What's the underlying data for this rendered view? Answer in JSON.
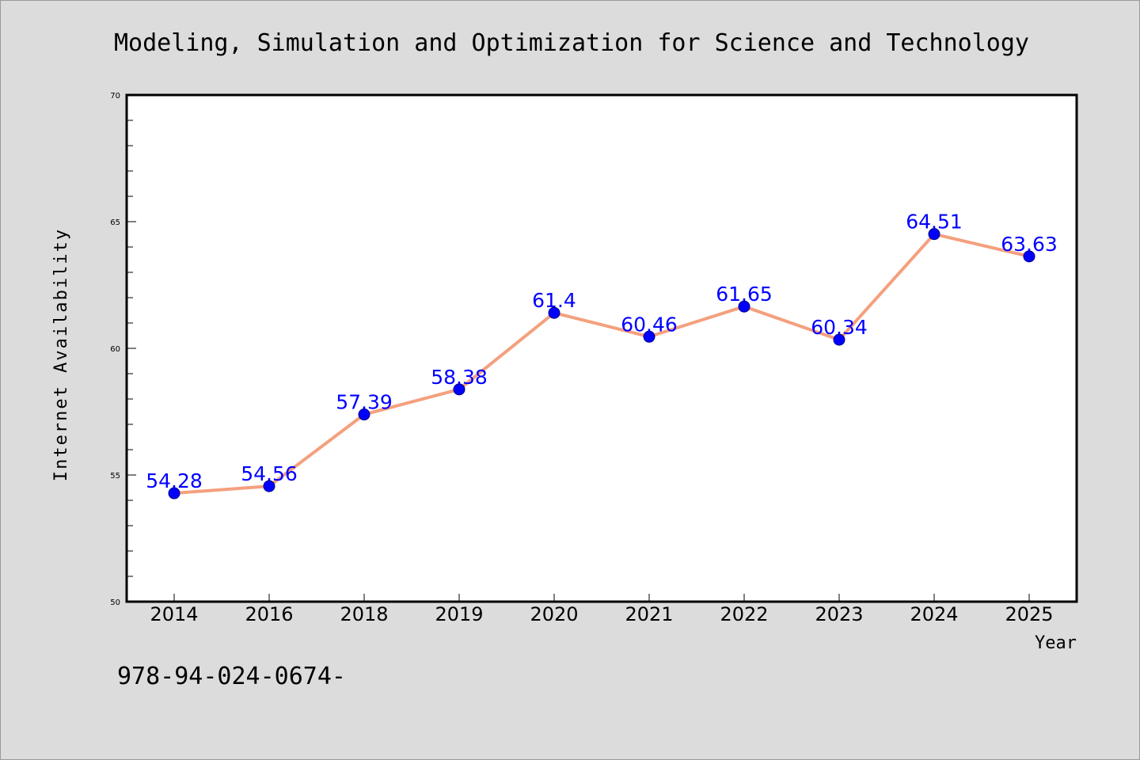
{
  "page": {
    "background_color": "#dcdcdc",
    "footer_text": "978-94-024-0674-"
  },
  "chart_data": {
    "type": "line",
    "title": "Modeling, Simulation and Optimization for Science and Technology",
    "xlabel": "Year",
    "ylabel": "Internet Availability",
    "categories": [
      "2014",
      "2016",
      "2018",
      "2019",
      "2020",
      "2021",
      "2022",
      "2023",
      "2024",
      "2025"
    ],
    "series": [
      {
        "values": [
          54.28,
          54.56,
          57.39,
          58.38,
          61.4,
          60.46,
          61.65,
          60.34,
          64.51,
          63.63
        ],
        "data_labels": [
          "54.28",
          "54.56",
          "57.39",
          "58.38",
          "61.4",
          "60.46",
          "61.65",
          "60.34",
          "64.51",
          "63.63"
        ],
        "line_color": "#f4a07e",
        "marker_color": "#0000ff",
        "label_color": "#0000ff"
      }
    ],
    "ylim": [
      50,
      70
    ],
    "yticks": [
      "50",
      "55",
      "60",
      "65",
      "70"
    ],
    "grid": false,
    "legend": "none",
    "plot_background": "#ffffff"
  }
}
